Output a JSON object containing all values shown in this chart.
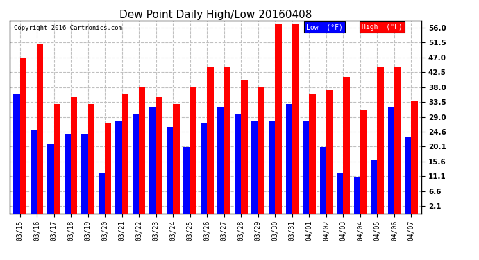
{
  "title": "Dew Point Daily High/Low 20160408",
  "copyright": "Copyright 2016 Cartronics.com",
  "dates": [
    "03/15",
    "03/16",
    "03/17",
    "03/18",
    "03/19",
    "03/20",
    "03/21",
    "03/22",
    "03/23",
    "03/24",
    "03/25",
    "03/26",
    "03/27",
    "03/28",
    "03/29",
    "03/30",
    "03/31",
    "04/01",
    "04/02",
    "04/03",
    "04/04",
    "04/05",
    "04/06",
    "04/07"
  ],
  "low_values": [
    36,
    25,
    21,
    24,
    24,
    12,
    28,
    30,
    32,
    26,
    20,
    27,
    32,
    30,
    28,
    28,
    33,
    28,
    20,
    12,
    11,
    16,
    32,
    23
  ],
  "high_values": [
    47,
    51,
    33,
    35,
    33,
    27,
    36,
    38,
    35,
    33,
    38,
    44,
    44,
    40,
    38,
    57,
    57,
    36,
    37,
    41,
    31,
    44,
    44,
    34
  ],
  "low_color": "#0000ff",
  "high_color": "#ff0000",
  "bg_color": "#ffffff",
  "grid_color": "#c0c0c0",
  "yticks": [
    2.1,
    6.6,
    11.1,
    15.6,
    20.1,
    24.6,
    29.0,
    33.5,
    38.0,
    42.5,
    47.0,
    51.5,
    56.0
  ],
  "ymin": 0,
  "ymax": 58,
  "bar_width": 0.38
}
